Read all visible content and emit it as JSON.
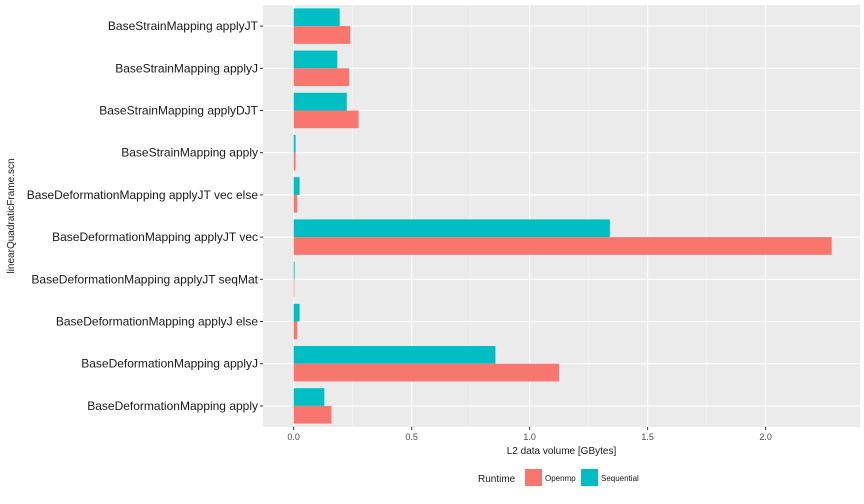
{
  "chart_data": {
    "type": "bar",
    "orientation": "horizontal",
    "grouping": "dodge",
    "title": "",
    "xlabel": "L2 data volume [GBytes]",
    "ylabel": "linearQuadraticFrame.scn",
    "xlim": [
      -0.13,
      2.4
    ],
    "xticks": [
      "0.0",
      "0.5",
      "1.0",
      "1.5",
      "2.0"
    ],
    "xtick_values": [
      0,
      0.5,
      1.0,
      1.5,
      2.0
    ],
    "grid": true,
    "categories": [
      "BaseStrainMapping applyJT",
      "BaseStrainMapping applyJ",
      "BaseStrainMapping applyDJT",
      "BaseStrainMapping apply",
      "BaseDeformationMapping applyJT vec else",
      "BaseDeformationMapping applyJT vec",
      "BaseDeformationMapping applyJT seqMat",
      "BaseDeformationMapping applyJ else",
      "BaseDeformationMapping applyJ",
      "BaseDeformationMapping apply"
    ],
    "series": [
      {
        "name": "Openmp",
        "color": "#f8766d",
        "values": [
          0.24,
          0.235,
          0.275,
          0.008,
          0.015,
          2.28,
          0.001,
          0.015,
          1.125,
          0.16
        ]
      },
      {
        "name": "Sequential",
        "color": "#00bfc4",
        "values": [
          0.195,
          0.185,
          0.225,
          0.008,
          0.025,
          1.34,
          0.004,
          0.025,
          0.855,
          0.13
        ]
      }
    ],
    "legend": {
      "title": "Runtime",
      "position": "bottom"
    }
  }
}
